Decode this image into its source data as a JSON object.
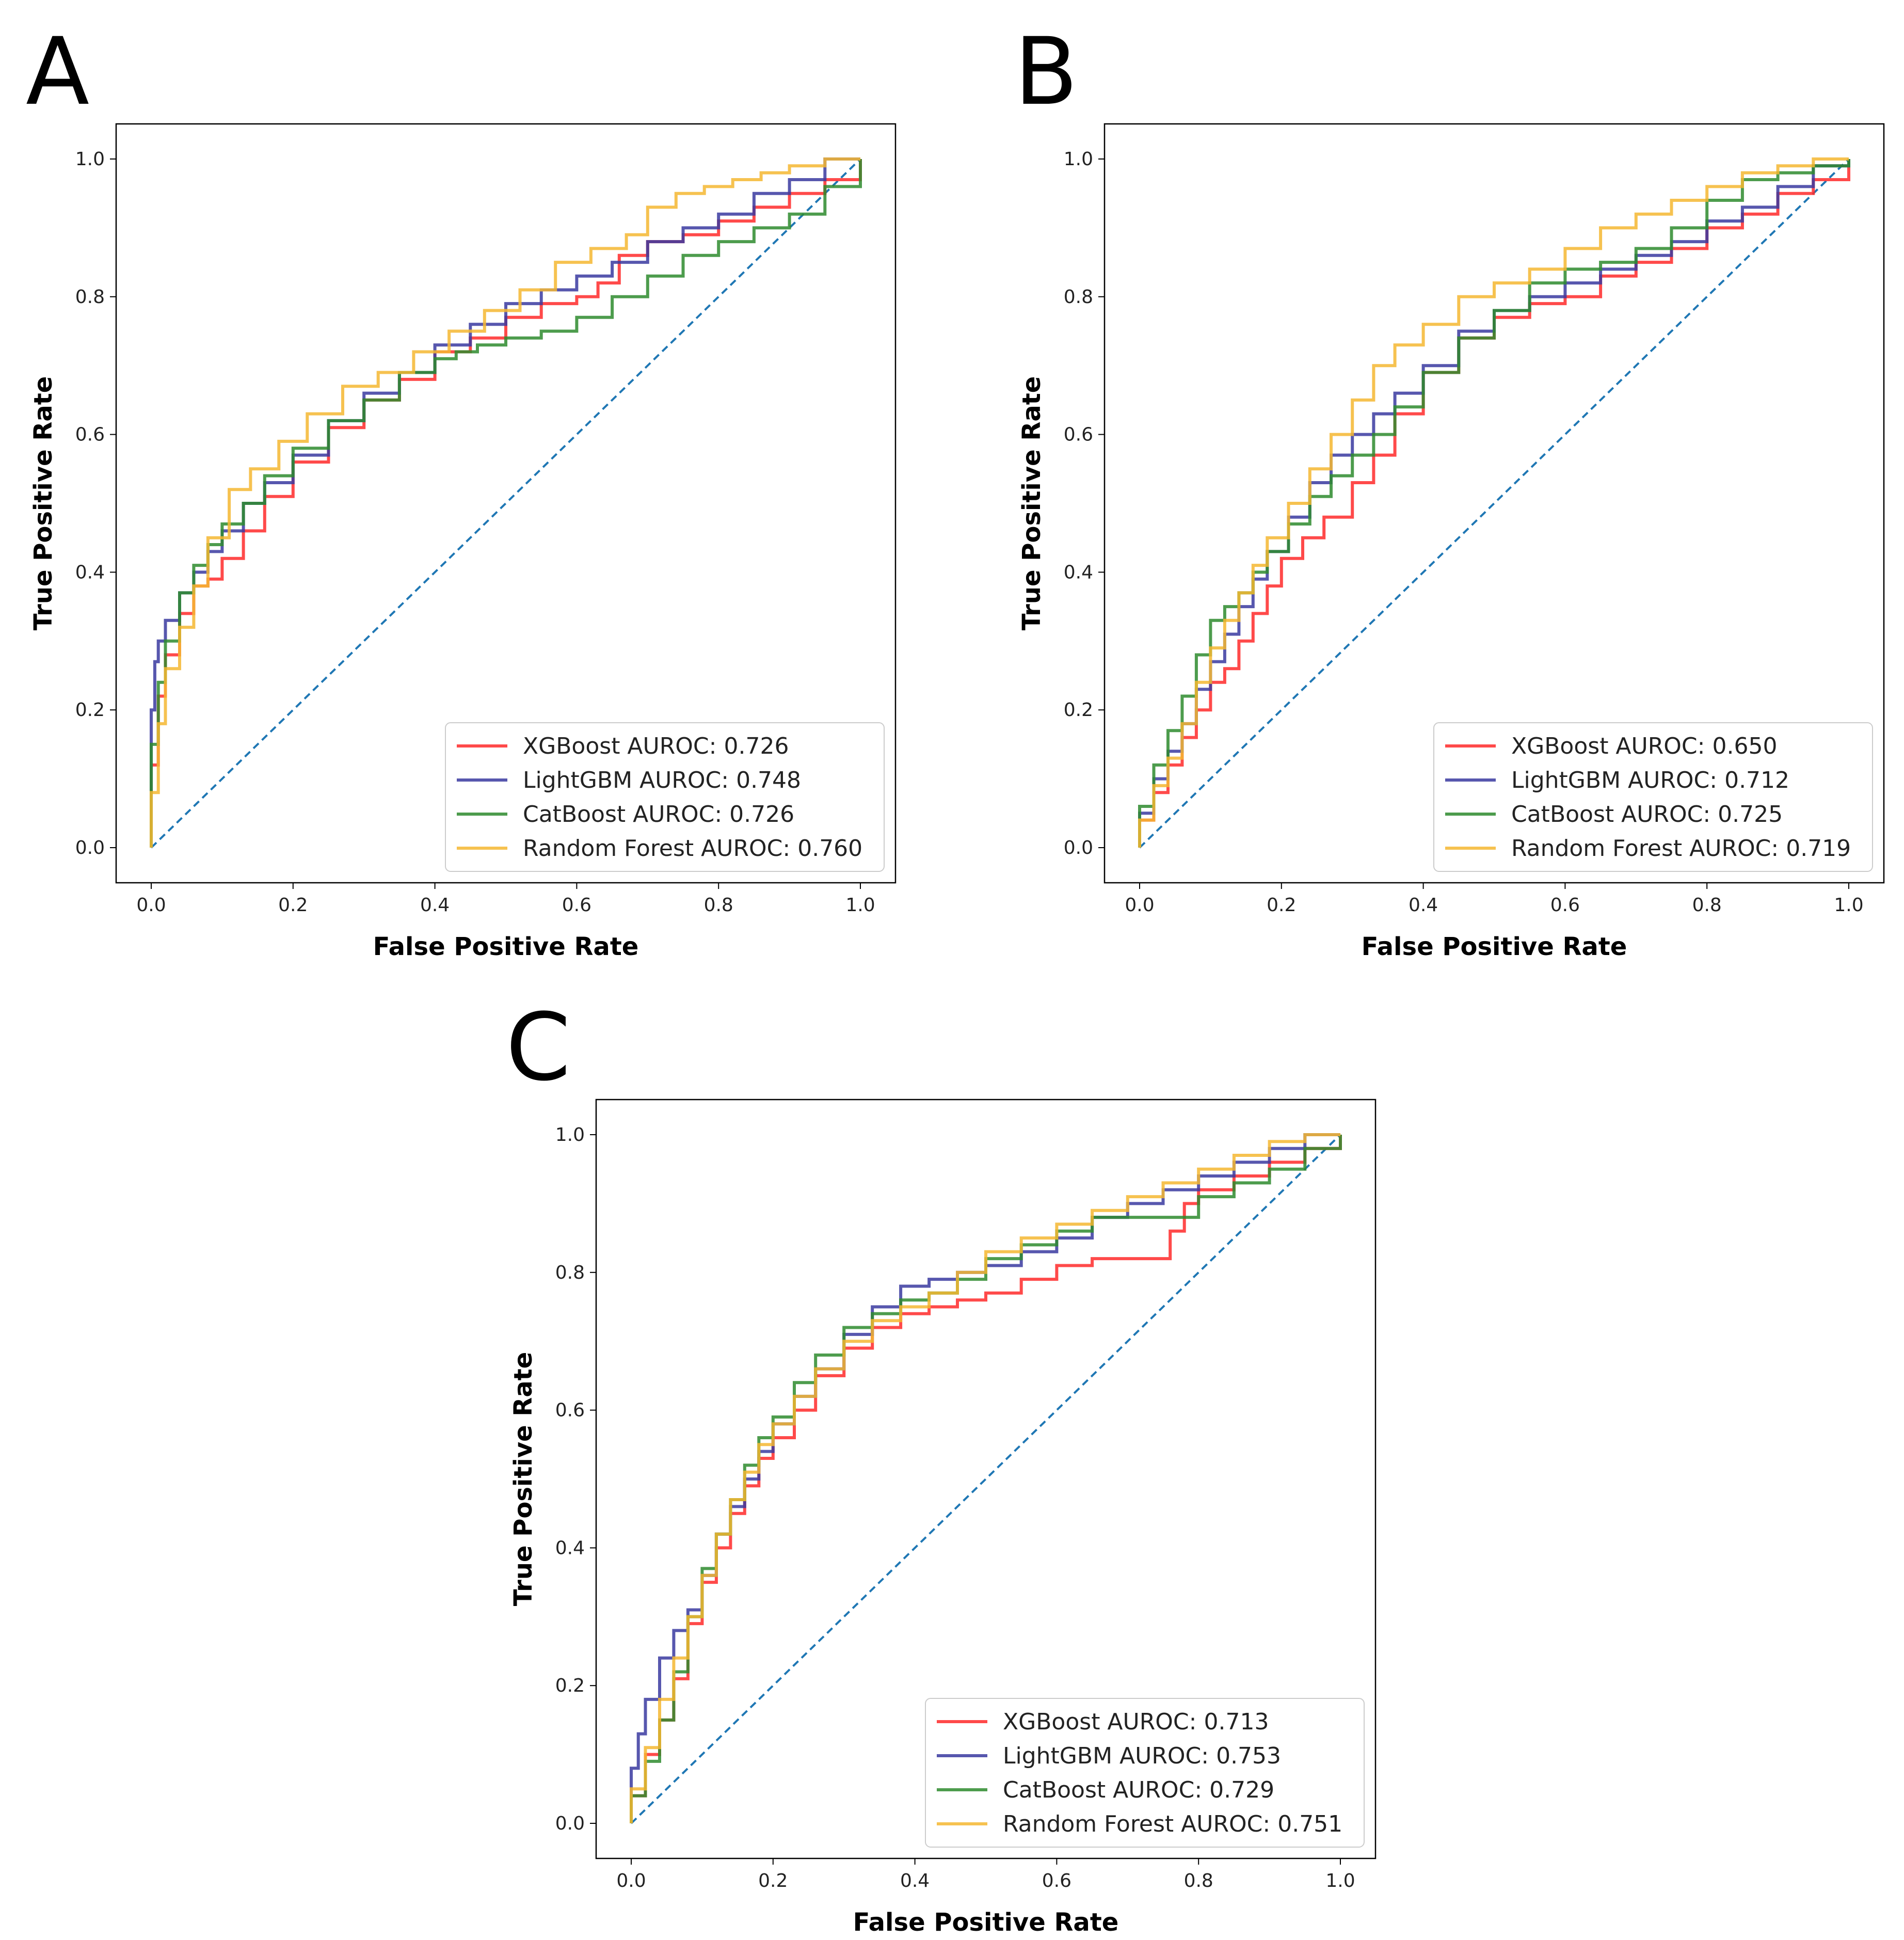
{
  "panels": [
    {
      "label": "A",
      "chart_data": {
        "type": "line",
        "title": "",
        "xlabel": "False Positive Rate",
        "ylabel": "True Positive Rate",
        "xlim": [
          0,
          1
        ],
        "ylim": [
          0,
          1
        ],
        "xticks": [
          "0.0",
          "0.2",
          "0.4",
          "0.6",
          "0.8",
          "1.0"
        ],
        "yticks": [
          "0.0",
          "0.2",
          "0.4",
          "0.6",
          "0.8",
          "1.0"
        ],
        "legend_position": "bottom-right",
        "reference_line": {
          "name": "chance",
          "color": "#1f77b4",
          "style": "dashed",
          "x": [
            0,
            1
          ],
          "y": [
            0,
            1
          ]
        },
        "series": [
          {
            "name": "XGBoost AUROC: 0.726",
            "color": "#ff2a2a",
            "x": [
              0,
              0,
              0.01,
              0.02,
              0.04,
              0.06,
              0.08,
              0.1,
              0.13,
              0.16,
              0.2,
              0.25,
              0.3,
              0.35,
              0.4,
              0.45,
              0.5,
              0.55,
              0.6,
              0.63,
              0.66,
              0.7,
              0.75,
              0.8,
              0.85,
              0.9,
              0.95,
              1
            ],
            "y": [
              0,
              0.12,
              0.22,
              0.28,
              0.34,
              0.38,
              0.39,
              0.42,
              0.46,
              0.51,
              0.56,
              0.61,
              0.65,
              0.68,
              0.72,
              0.74,
              0.77,
              0.79,
              0.8,
              0.82,
              0.86,
              0.88,
              0.89,
              0.91,
              0.93,
              0.95,
              0.97,
              1
            ]
          },
          {
            "name": "LightGBM AUROC: 0.748",
            "color": "#3a3aa0",
            "x": [
              0,
              0,
              0.005,
              0.01,
              0.02,
              0.04,
              0.06,
              0.08,
              0.1,
              0.13,
              0.16,
              0.2,
              0.25,
              0.3,
              0.35,
              0.4,
              0.45,
              0.5,
              0.55,
              0.6,
              0.65,
              0.7,
              0.75,
              0.8,
              0.85,
              0.9,
              0.95,
              1
            ],
            "y": [
              0,
              0.2,
              0.27,
              0.3,
              0.33,
              0.37,
              0.4,
              0.43,
              0.46,
              0.5,
              0.53,
              0.57,
              0.62,
              0.66,
              0.69,
              0.73,
              0.76,
              0.79,
              0.81,
              0.83,
              0.85,
              0.88,
              0.9,
              0.92,
              0.95,
              0.97,
              1,
              1
            ]
          },
          {
            "name": "CatBoost AUROC: 0.726",
            "color": "#2e8b2e",
            "x": [
              0,
              0,
              0.01,
              0.02,
              0.04,
              0.06,
              0.08,
              0.1,
              0.13,
              0.16,
              0.2,
              0.25,
              0.3,
              0.35,
              0.4,
              0.43,
              0.46,
              0.5,
              0.55,
              0.6,
              0.65,
              0.7,
              0.75,
              0.8,
              0.85,
              0.9,
              0.95,
              1
            ],
            "y": [
              0,
              0.15,
              0.24,
              0.3,
              0.37,
              0.41,
              0.44,
              0.47,
              0.5,
              0.54,
              0.58,
              0.62,
              0.65,
              0.69,
              0.71,
              0.72,
              0.73,
              0.74,
              0.75,
              0.77,
              0.8,
              0.83,
              0.86,
              0.88,
              0.9,
              0.92,
              0.96,
              1
            ]
          },
          {
            "name": "Random Forest AUROC: 0.760",
            "color": "#f5b731",
            "x": [
              0,
              0,
              0.01,
              0.02,
              0.04,
              0.06,
              0.08,
              0.11,
              0.14,
              0.18,
              0.22,
              0.27,
              0.32,
              0.37,
              0.42,
              0.47,
              0.52,
              0.57,
              0.62,
              0.67,
              0.7,
              0.74,
              0.78,
              0.82,
              0.86,
              0.9,
              0.95,
              1
            ],
            "y": [
              0,
              0.08,
              0.18,
              0.26,
              0.32,
              0.38,
              0.45,
              0.52,
              0.55,
              0.59,
              0.63,
              0.67,
              0.69,
              0.72,
              0.75,
              0.78,
              0.81,
              0.85,
              0.87,
              0.89,
              0.93,
              0.95,
              0.96,
              0.97,
              0.98,
              0.99,
              1,
              1
            ]
          }
        ]
      }
    },
    {
      "label": "B",
      "chart_data": {
        "type": "line",
        "title": "",
        "xlabel": "False Positive Rate",
        "ylabel": "True Positive Rate",
        "xlim": [
          0,
          1
        ],
        "ylim": [
          0,
          1
        ],
        "xticks": [
          "0.0",
          "0.2",
          "0.4",
          "0.6",
          "0.8",
          "1.0"
        ],
        "yticks": [
          "0.0",
          "0.2",
          "0.4",
          "0.6",
          "0.8",
          "1.0"
        ],
        "legend_position": "bottom-right",
        "reference_line": {
          "name": "chance",
          "color": "#1f77b4",
          "style": "dashed",
          "x": [
            0,
            1
          ],
          "y": [
            0,
            1
          ]
        },
        "series": [
          {
            "name": "XGBoost AUROC: 0.650",
            "color": "#ff2a2a",
            "x": [
              0,
              0,
              0.02,
              0.04,
              0.06,
              0.08,
              0.1,
              0.12,
              0.14,
              0.16,
              0.18,
              0.2,
              0.23,
              0.26,
              0.3,
              0.33,
              0.36,
              0.4,
              0.45,
              0.5,
              0.55,
              0.6,
              0.65,
              0.7,
              0.75,
              0.8,
              0.85,
              0.9,
              0.95,
              1
            ],
            "y": [
              0,
              0.04,
              0.08,
              0.12,
              0.16,
              0.2,
              0.24,
              0.26,
              0.3,
              0.34,
              0.38,
              0.42,
              0.45,
              0.48,
              0.53,
              0.57,
              0.63,
              0.69,
              0.74,
              0.77,
              0.79,
              0.8,
              0.83,
              0.85,
              0.87,
              0.9,
              0.92,
              0.95,
              0.97,
              1
            ]
          },
          {
            "name": "LightGBM AUROC: 0.712",
            "color": "#3a3aa0",
            "x": [
              0,
              0,
              0.02,
              0.04,
              0.06,
              0.08,
              0.1,
              0.12,
              0.14,
              0.16,
              0.18,
              0.21,
              0.24,
              0.27,
              0.3,
              0.33,
              0.36,
              0.4,
              0.45,
              0.5,
              0.55,
              0.6,
              0.65,
              0.7,
              0.75,
              0.8,
              0.85,
              0.9,
              0.95,
              1
            ],
            "y": [
              0,
              0.05,
              0.1,
              0.14,
              0.18,
              0.23,
              0.27,
              0.31,
              0.35,
              0.39,
              0.43,
              0.48,
              0.53,
              0.57,
              0.6,
              0.63,
              0.66,
              0.7,
              0.75,
              0.78,
              0.8,
              0.82,
              0.84,
              0.86,
              0.88,
              0.91,
              0.93,
              0.96,
              0.99,
              1
            ]
          },
          {
            "name": "CatBoost AUROC: 0.725",
            "color": "#2e8b2e",
            "x": [
              0,
              0,
              0.02,
              0.04,
              0.06,
              0.08,
              0.1,
              0.12,
              0.14,
              0.16,
              0.18,
              0.21,
              0.24,
              0.27,
              0.3,
              0.33,
              0.36,
              0.4,
              0.45,
              0.5,
              0.55,
              0.6,
              0.65,
              0.7,
              0.75,
              0.8,
              0.85,
              0.9,
              0.95,
              1
            ],
            "y": [
              0,
              0.06,
              0.12,
              0.17,
              0.22,
              0.28,
              0.33,
              0.35,
              0.37,
              0.4,
              0.43,
              0.47,
              0.51,
              0.54,
              0.57,
              0.6,
              0.64,
              0.69,
              0.74,
              0.78,
              0.82,
              0.84,
              0.85,
              0.87,
              0.9,
              0.94,
              0.97,
              0.98,
              0.99,
              1
            ]
          },
          {
            "name": "Random Forest AUROC: 0.719",
            "color": "#f5b731",
            "x": [
              0,
              0,
              0.02,
              0.04,
              0.06,
              0.08,
              0.1,
              0.12,
              0.14,
              0.16,
              0.18,
              0.21,
              0.24,
              0.27,
              0.3,
              0.33,
              0.36,
              0.4,
              0.45,
              0.5,
              0.55,
              0.6,
              0.65,
              0.7,
              0.75,
              0.8,
              0.85,
              0.9,
              0.95,
              1
            ],
            "y": [
              0,
              0.04,
              0.09,
              0.13,
              0.18,
              0.24,
              0.29,
              0.33,
              0.37,
              0.41,
              0.45,
              0.5,
              0.55,
              0.6,
              0.65,
              0.7,
              0.73,
              0.76,
              0.8,
              0.82,
              0.84,
              0.87,
              0.9,
              0.92,
              0.94,
              0.96,
              0.98,
              0.99,
              1,
              1
            ]
          }
        ]
      }
    },
    {
      "label": "C",
      "chart_data": {
        "type": "line",
        "title": "",
        "xlabel": "False Positive Rate",
        "ylabel": "True Positive Rate",
        "xlim": [
          0,
          1
        ],
        "ylim": [
          0,
          1
        ],
        "xticks": [
          "0.0",
          "0.2",
          "0.4",
          "0.6",
          "0.8",
          "1.0"
        ],
        "yticks": [
          "0.0",
          "0.2",
          "0.4",
          "0.6",
          "0.8",
          "1.0"
        ],
        "legend_position": "bottom-right",
        "reference_line": {
          "name": "chance",
          "color": "#1f77b4",
          "style": "dashed",
          "x": [
            0,
            1
          ],
          "y": [
            0,
            1
          ]
        },
        "series": [
          {
            "name": "XGBoost AUROC: 0.713",
            "color": "#ff2a2a",
            "x": [
              0,
              0,
              0.02,
              0.04,
              0.06,
              0.08,
              0.1,
              0.12,
              0.14,
              0.16,
              0.18,
              0.2,
              0.23,
              0.26,
              0.3,
              0.34,
              0.38,
              0.42,
              0.46,
              0.5,
              0.55,
              0.6,
              0.65,
              0.7,
              0.74,
              0.76,
              0.78,
              0.8,
              0.85,
              0.9,
              0.95,
              1
            ],
            "y": [
              0,
              0.04,
              0.1,
              0.15,
              0.21,
              0.29,
              0.35,
              0.4,
              0.45,
              0.49,
              0.53,
              0.56,
              0.6,
              0.65,
              0.69,
              0.72,
              0.74,
              0.75,
              0.76,
              0.77,
              0.79,
              0.81,
              0.82,
              0.82,
              0.82,
              0.86,
              0.9,
              0.92,
              0.94,
              0.96,
              0.98,
              1
            ]
          },
          {
            "name": "LightGBM AUROC: 0.753",
            "color": "#3a3aa0",
            "x": [
              0,
              0,
              0.01,
              0.02,
              0.04,
              0.06,
              0.08,
              0.1,
              0.12,
              0.14,
              0.16,
              0.18,
              0.2,
              0.23,
              0.26,
              0.3,
              0.34,
              0.38,
              0.42,
              0.46,
              0.5,
              0.55,
              0.6,
              0.65,
              0.7,
              0.75,
              0.8,
              0.85,
              0.9,
              0.95,
              1
            ],
            "y": [
              0,
              0.08,
              0.13,
              0.18,
              0.24,
              0.28,
              0.31,
              0.36,
              0.42,
              0.46,
              0.5,
              0.54,
              0.58,
              0.62,
              0.66,
              0.71,
              0.75,
              0.78,
              0.79,
              0.8,
              0.81,
              0.83,
              0.85,
              0.88,
              0.9,
              0.92,
              0.94,
              0.96,
              0.98,
              1,
              1
            ]
          },
          {
            "name": "CatBoost AUROC: 0.729",
            "color": "#2e8b2e",
            "x": [
              0,
              0,
              0.02,
              0.04,
              0.06,
              0.08,
              0.1,
              0.12,
              0.14,
              0.16,
              0.18,
              0.2,
              0.23,
              0.26,
              0.3,
              0.34,
              0.38,
              0.42,
              0.46,
              0.5,
              0.55,
              0.6,
              0.65,
              0.7,
              0.75,
              0.8,
              0.85,
              0.9,
              0.95,
              1
            ],
            "y": [
              0,
              0.04,
              0.09,
              0.15,
              0.22,
              0.3,
              0.37,
              0.42,
              0.47,
              0.52,
              0.56,
              0.59,
              0.64,
              0.68,
              0.72,
              0.74,
              0.76,
              0.77,
              0.79,
              0.82,
              0.84,
              0.86,
              0.88,
              0.88,
              0.88,
              0.91,
              0.93,
              0.95,
              0.98,
              1
            ]
          },
          {
            "name": "Random Forest AUROC: 0.751",
            "color": "#f5b731",
            "x": [
              0,
              0,
              0.02,
              0.04,
              0.06,
              0.08,
              0.1,
              0.12,
              0.14,
              0.16,
              0.18,
              0.2,
              0.23,
              0.26,
              0.3,
              0.34,
              0.38,
              0.42,
              0.46,
              0.5,
              0.55,
              0.6,
              0.65,
              0.7,
              0.75,
              0.8,
              0.85,
              0.9,
              0.95,
              1
            ],
            "y": [
              0,
              0.05,
              0.11,
              0.18,
              0.24,
              0.3,
              0.36,
              0.42,
              0.47,
              0.51,
              0.55,
              0.58,
              0.62,
              0.66,
              0.7,
              0.73,
              0.75,
              0.77,
              0.8,
              0.83,
              0.85,
              0.87,
              0.89,
              0.91,
              0.93,
              0.95,
              0.97,
              0.99,
              1,
              1
            ]
          }
        ]
      }
    }
  ]
}
